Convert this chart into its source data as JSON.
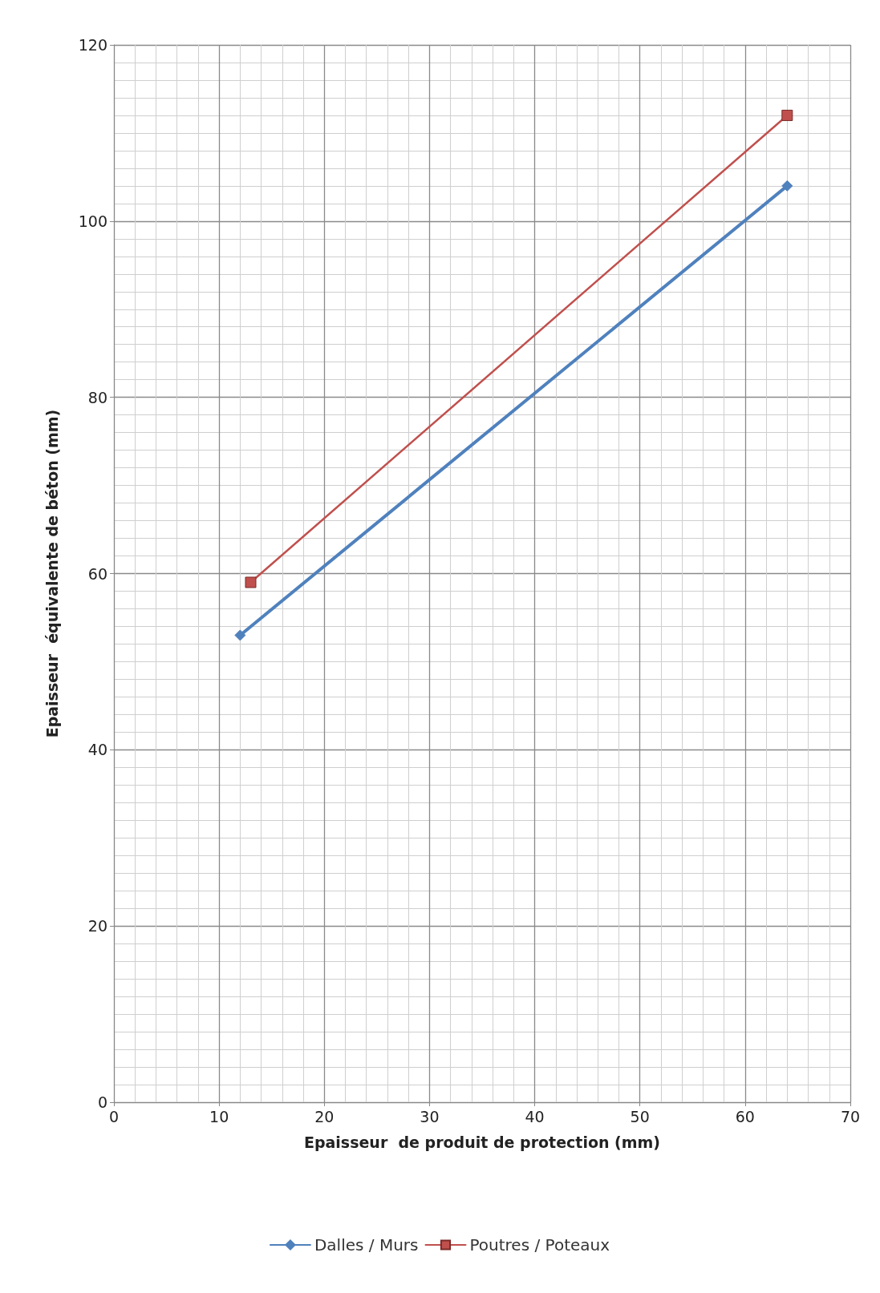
{
  "chart_data": {
    "type": "line",
    "xlabel": "Epaisseur  de produit de protection (mm)",
    "ylabel": "Epaisseur  équivalente de béton (mm)",
    "xlim": [
      0,
      70
    ],
    "xticks": [
      0,
      10,
      20,
      30,
      40,
      50,
      60,
      70
    ],
    "ylim": [
      0,
      120
    ],
    "yticks": [
      0,
      20,
      40,
      60,
      80,
      100,
      120
    ],
    "grid": true,
    "legend": "bottom",
    "series": [
      {
        "name": "Dalles / Murs",
        "color": "#4f81bd",
        "marker": "diamond",
        "x": [
          12,
          64
        ],
        "values": [
          53,
          104
        ]
      },
      {
        "name": "Poutres / Poteaux",
        "color": "#c0504d",
        "marker": "square",
        "x": [
          13,
          64
        ],
        "values": [
          59,
          112
        ]
      }
    ]
  }
}
